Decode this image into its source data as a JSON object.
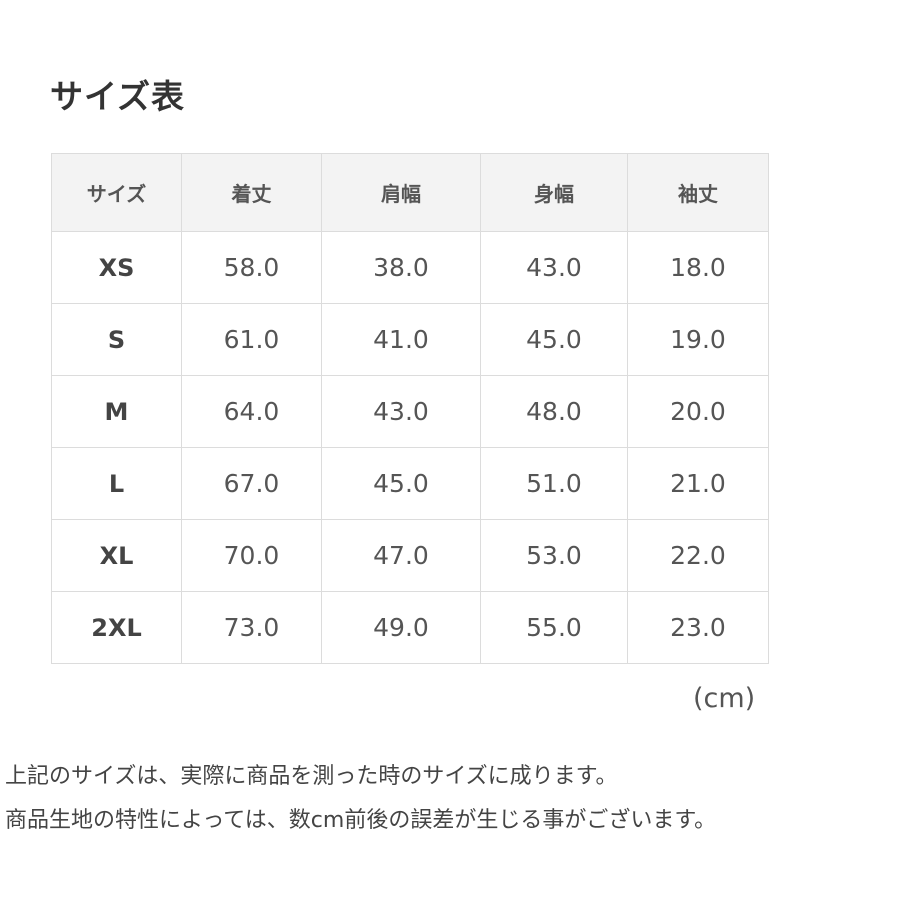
{
  "title": "サイズ表",
  "table": {
    "headers": [
      "サイズ",
      "着丈",
      "肩幅",
      "身幅",
      "袖丈"
    ],
    "rows": [
      [
        "XS",
        "58.0",
        "38.0",
        "43.0",
        "18.0"
      ],
      [
        "S",
        "61.0",
        "41.0",
        "45.0",
        "19.0"
      ],
      [
        "M",
        "64.0",
        "43.0",
        "48.0",
        "20.0"
      ],
      [
        "L",
        "67.0",
        "45.0",
        "51.0",
        "21.0"
      ],
      [
        "XL",
        "70.0",
        "47.0",
        "53.0",
        "22.0"
      ],
      [
        "2XL",
        "73.0",
        "49.0",
        "55.0",
        "23.0"
      ]
    ]
  },
  "unit": "(cm)",
  "notes": [
    "上記のサイズは、実際に商品を測った時のサイズに成ります。",
    "商品生地の特性によっては、数cm前後の誤差が生じる事がございます。"
  ]
}
